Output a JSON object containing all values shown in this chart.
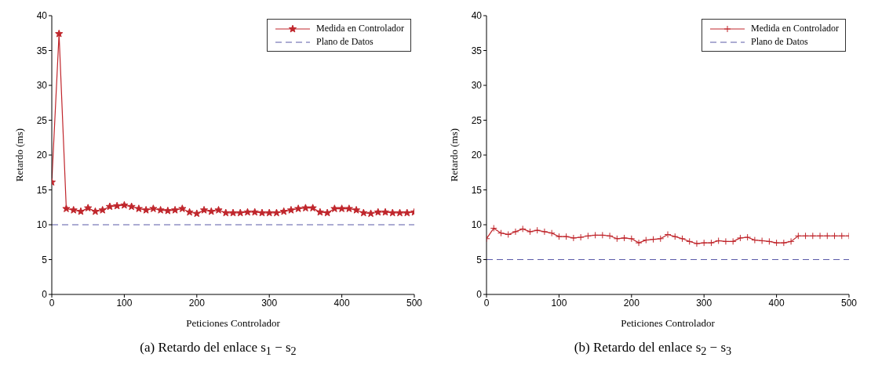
{
  "chart_data": [
    {
      "type": "line",
      "xlabel": "Peticiones Controlador",
      "ylabel": "Retardo (ms)",
      "xlim": [
        0,
        500
      ],
      "xticks": [
        0,
        100,
        200,
        300,
        400,
        500
      ],
      "ylim": [
        0,
        40
      ],
      "yticks": [
        0,
        5,
        10,
        15,
        20,
        25,
        30,
        35,
        40
      ],
      "grid": false,
      "legend": "top right",
      "annotations": [
        "(a) Retardo del enlace s$_{1}$ − s$_{2}$"
      ],
      "series": [
        {
          "name": "Medida en Controlador",
          "color": "#c0262c",
          "marker": "star",
          "line_style": "solid",
          "x": [
            0,
            10,
            20,
            30,
            40,
            50,
            60,
            70,
            80,
            90,
            100,
            110,
            120,
            130,
            140,
            150,
            160,
            170,
            180,
            190,
            200,
            210,
            220,
            230,
            240,
            250,
            260,
            270,
            280,
            290,
            300,
            310,
            320,
            330,
            340,
            350,
            360,
            370,
            380,
            390,
            400,
            410,
            420,
            430,
            440,
            450,
            460,
            470,
            480,
            490,
            500
          ],
          "values": [
            16.1,
            37.4,
            12.3,
            12.1,
            11.9,
            12.4,
            11.9,
            12.1,
            12.6,
            12.7,
            12.8,
            12.6,
            12.3,
            12.1,
            12.3,
            12.1,
            12.0,
            12.1,
            12.3,
            11.8,
            11.6,
            12.1,
            11.9,
            12.1,
            11.7,
            11.7,
            11.7,
            11.8,
            11.8,
            11.7,
            11.7,
            11.7,
            11.9,
            12.1,
            12.3,
            12.4,
            12.4,
            11.8,
            11.7,
            12.3,
            12.3,
            12.3,
            12.1,
            11.7,
            11.6,
            11.8,
            11.8,
            11.7,
            11.7,
            11.7,
            11.8
          ]
        },
        {
          "name": "Plano de Datos",
          "color": "#5a5aa8",
          "marker": "none",
          "line_style": "dashed",
          "x": [
            0,
            500
          ],
          "values": [
            10,
            10
          ]
        }
      ]
    },
    {
      "type": "line",
      "xlabel": "Peticiones Controlador",
      "ylabel": "Retardo (ms)",
      "xlim": [
        0,
        500
      ],
      "xticks": [
        0,
        100,
        200,
        300,
        400,
        500
      ],
      "ylim": [
        0,
        40
      ],
      "yticks": [
        0,
        5,
        10,
        15,
        20,
        25,
        30,
        35,
        40
      ],
      "grid": false,
      "legend": "top right",
      "annotations": [
        "(b) Retardo del enlace s$_{2}$ − s$_{3}$"
      ],
      "series": [
        {
          "name": "Medida en Controlador",
          "color": "#c0262c",
          "marker": "cross",
          "line_style": "solid",
          "x": [
            0,
            10,
            20,
            30,
            40,
            50,
            60,
            70,
            80,
            90,
            100,
            110,
            120,
            130,
            140,
            150,
            160,
            170,
            180,
            190,
            200,
            210,
            220,
            230,
            240,
            250,
            260,
            270,
            280,
            290,
            300,
            310,
            320,
            330,
            340,
            350,
            360,
            370,
            380,
            390,
            400,
            410,
            420,
            430,
            440,
            450,
            460,
            470,
            480,
            490,
            500
          ],
          "values": [
            8.0,
            9.5,
            8.8,
            8.6,
            9.0,
            9.4,
            9.0,
            9.2,
            9.0,
            8.8,
            8.3,
            8.3,
            8.1,
            8.2,
            8.4,
            8.5,
            8.5,
            8.4,
            8.0,
            8.1,
            8.0,
            7.4,
            7.8,
            7.9,
            8.0,
            8.6,
            8.3,
            8.0,
            7.6,
            7.3,
            7.4,
            7.4,
            7.7,
            7.6,
            7.6,
            8.1,
            8.2,
            7.8,
            7.7,
            7.6,
            7.4,
            7.4,
            7.6,
            8.4,
            8.4,
            8.4,
            8.4,
            8.4,
            8.4,
            8.4,
            8.4
          ]
        },
        {
          "name": "Plano de Datos",
          "color": "#5a5aa8",
          "marker": "none",
          "line_style": "dashed",
          "x": [
            0,
            500
          ],
          "values": [
            5,
            5
          ]
        }
      ]
    }
  ]
}
